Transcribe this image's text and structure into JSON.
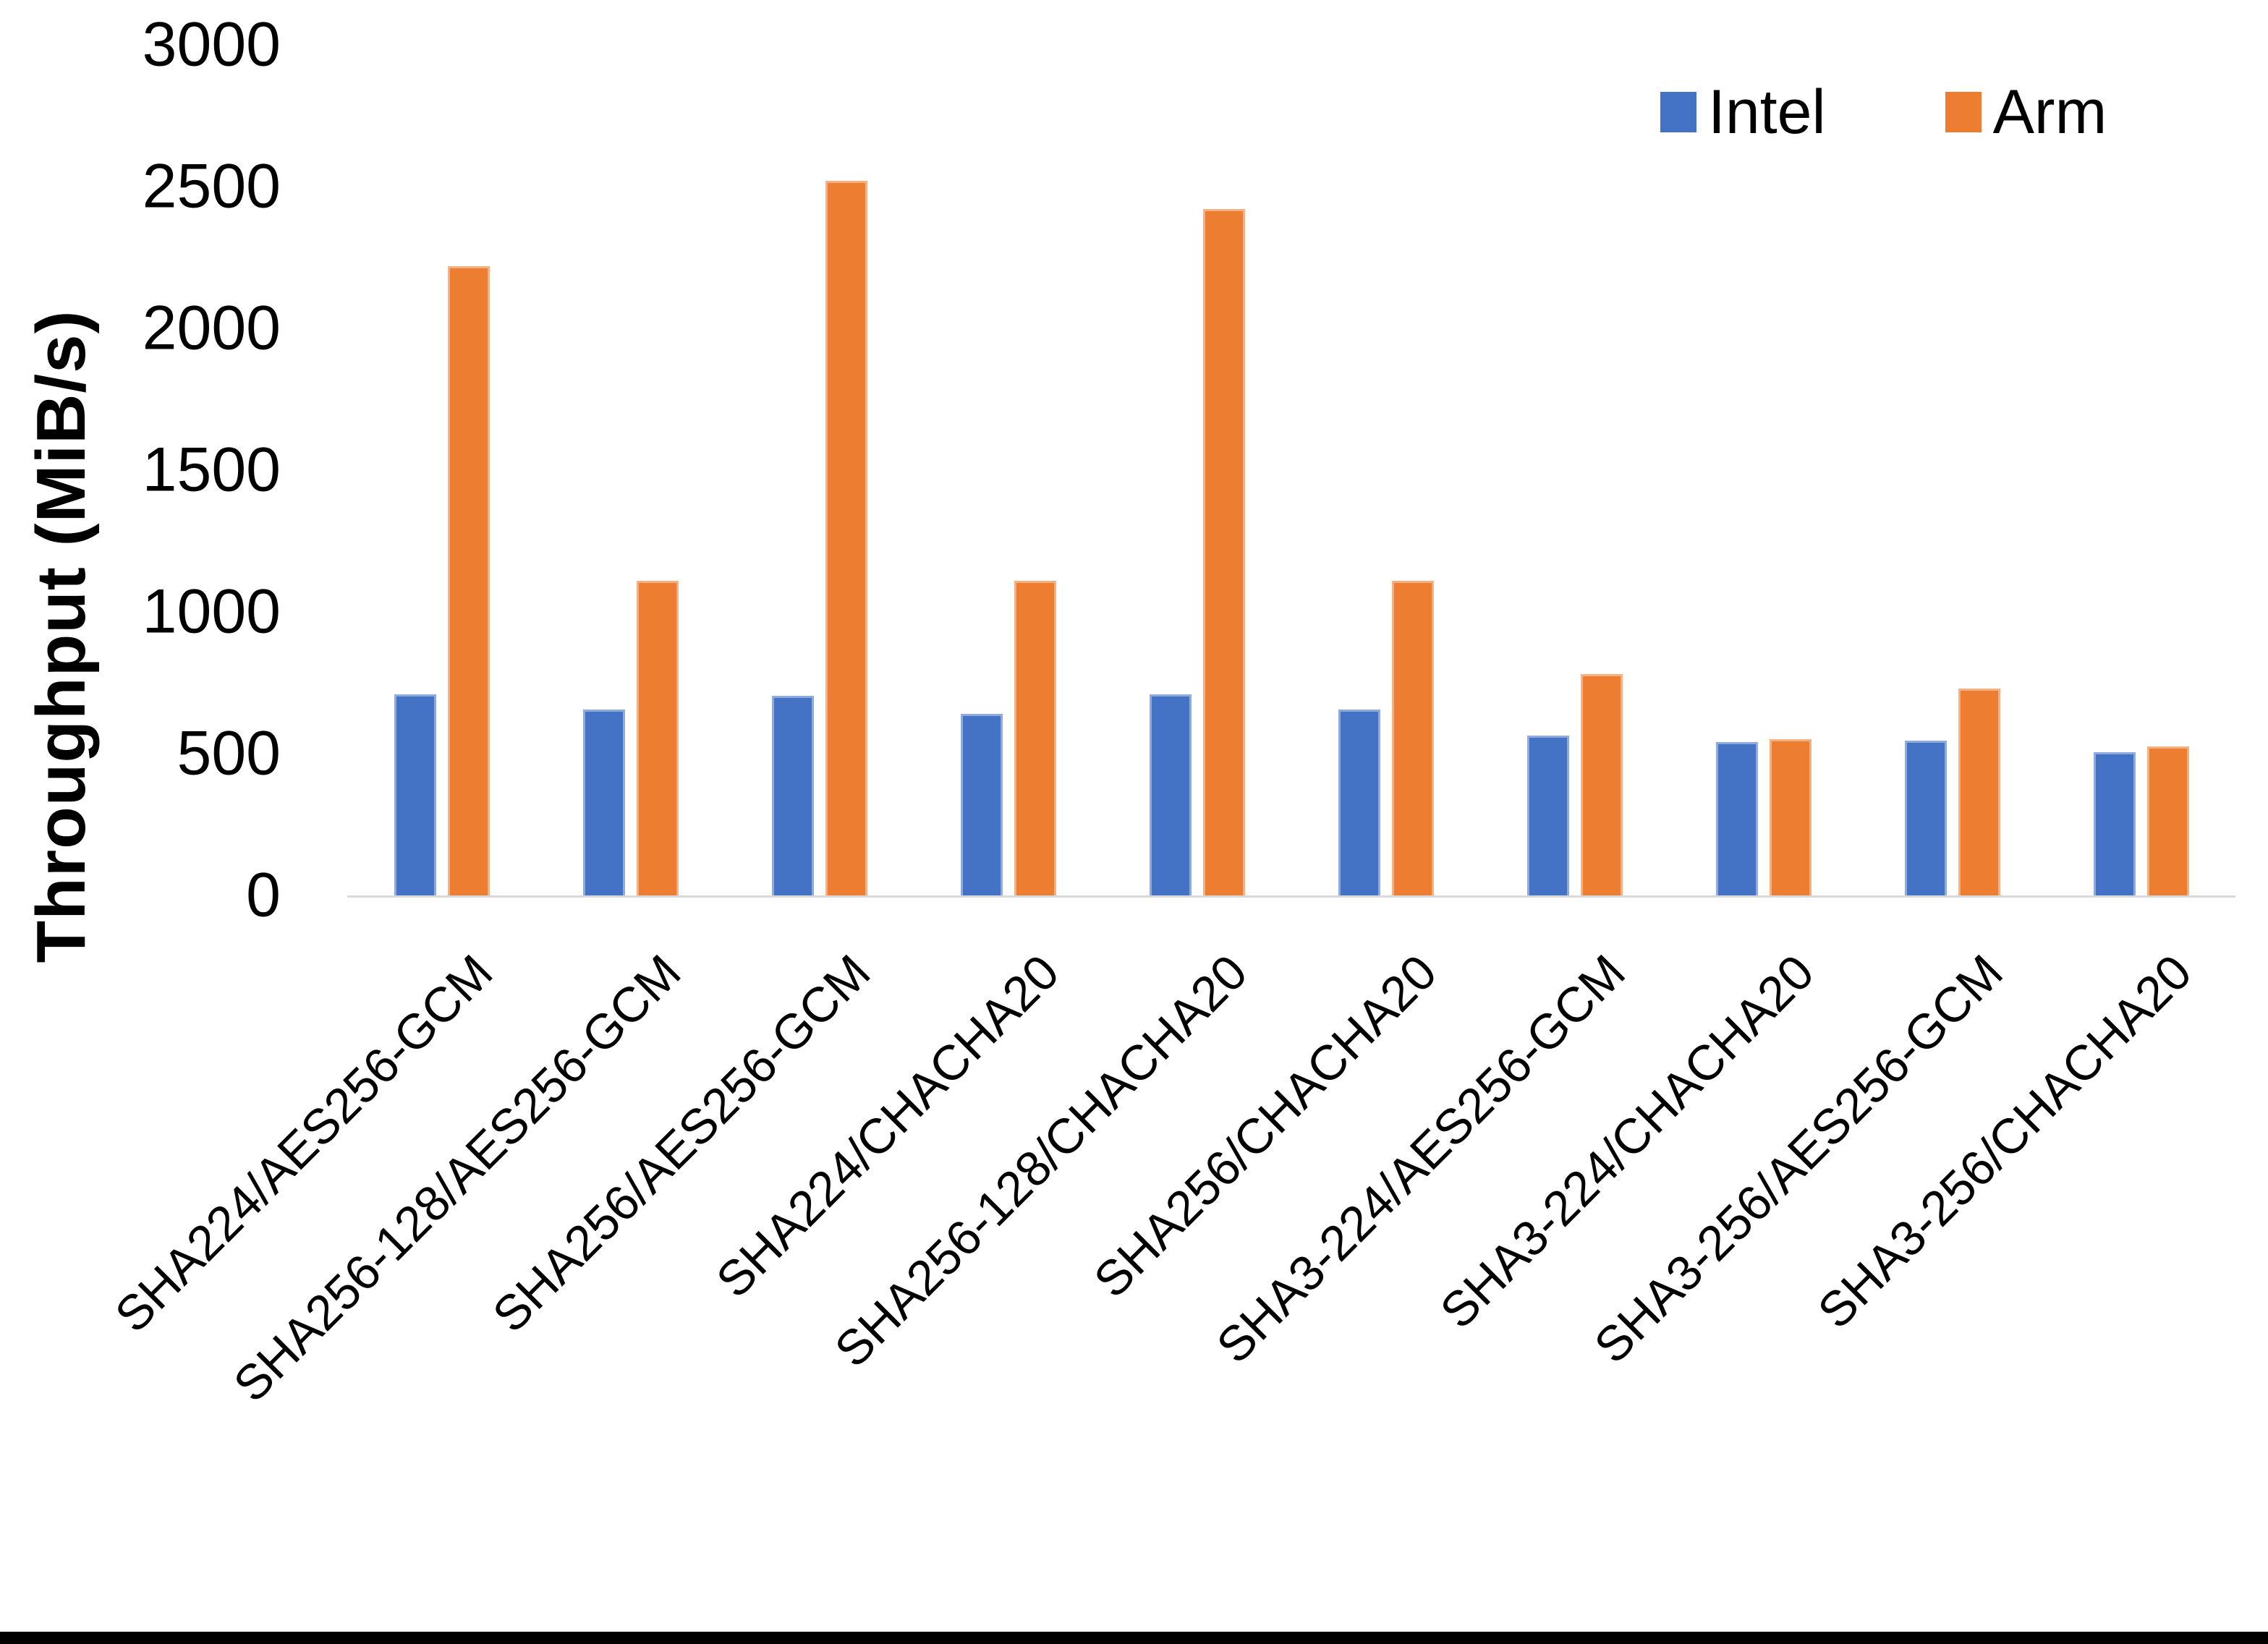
{
  "chart_data": {
    "type": "bar",
    "title": "",
    "xlabel": "",
    "ylabel": "Throughput (MiB/s)",
    "ylim": [
      0,
      3000
    ],
    "yticks": [
      3000,
      2500,
      2000,
      1500,
      1000,
      500,
      0
    ],
    "grid": false,
    "legend_position": "top-right",
    "categories": [
      "SHA224/AES256-GCM",
      "SHA256-128/AES256-GCM",
      "SHA256/AES256-GCM",
      "SHA224/CHACHA20",
      "SHA256-128/CHACHA20",
      "SHA256/CHACHA20",
      "SHA3-224/AES256-GCM",
      "SHA3-224/CHACHA20",
      "SHA3-256/AES256-GCM",
      "SHA3-256/CHACHA20"
    ],
    "series": [
      {
        "name": "Intel",
        "color": "#4472C4",
        "edge_color": "#8FAADC",
        "values": [
          710,
          655,
          705,
          640,
          710,
          655,
          565,
          540,
          545,
          505
        ]
      },
      {
        "name": "Arm",
        "color": "#ED7D31",
        "edge_color": "#F4B183",
        "values": [
          2220,
          1110,
          2520,
          1110,
          2420,
          1110,
          780,
          550,
          730,
          525
        ]
      }
    ]
  },
  "colors": {
    "axis_line": "#D9D9D9",
    "text": "#000000",
    "background": "#FFFFFF",
    "bottom_border": "#000000"
  }
}
